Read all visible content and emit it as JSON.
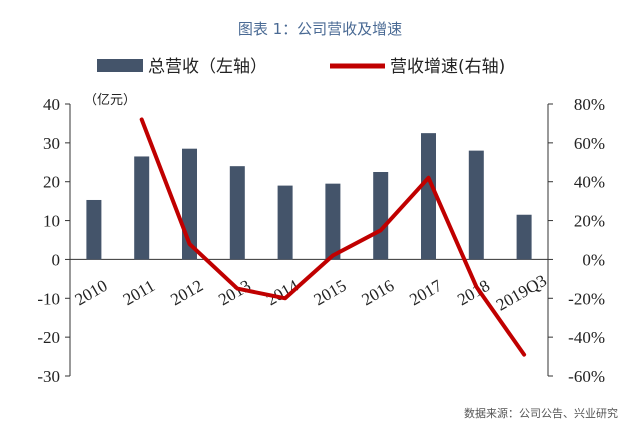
{
  "chart_data": {
    "type": "bar+line",
    "title": "图表 1：公司营收及增速",
    "unit_label": "（亿元）",
    "source": "数据来源：公司公告、兴业研究",
    "categories": [
      "2010",
      "2011",
      "2012",
      "2013",
      "2014",
      "2015",
      "2016",
      "2017",
      "2018",
      "2019Q3"
    ],
    "series": [
      {
        "name": "总营收（左轴）",
        "type": "bar",
        "axis": "left",
        "color": "#44546a",
        "values": [
          15.3,
          26.5,
          28.5,
          24.0,
          19.0,
          19.5,
          22.5,
          32.5,
          28.0,
          11.5
        ]
      },
      {
        "name": "营收增速(右轴)",
        "type": "line",
        "axis": "right",
        "color": "#c00000",
        "values": [
          null,
          72,
          8,
          -15,
          -20,
          2,
          15,
          42,
          -14,
          -49
        ]
      }
    ],
    "y_left": {
      "min": -30,
      "max": 40,
      "ticks": [
        "40",
        "30",
        "20",
        "10",
        "0",
        "-10",
        "-20",
        "-30"
      ]
    },
    "y_right": {
      "min": -60,
      "max": 80,
      "ticks": [
        "80%",
        "60%",
        "40%",
        "20%",
        "0%",
        "-20%",
        "-40%",
        "-60%"
      ]
    },
    "grid": false,
    "legend_position": "top"
  }
}
